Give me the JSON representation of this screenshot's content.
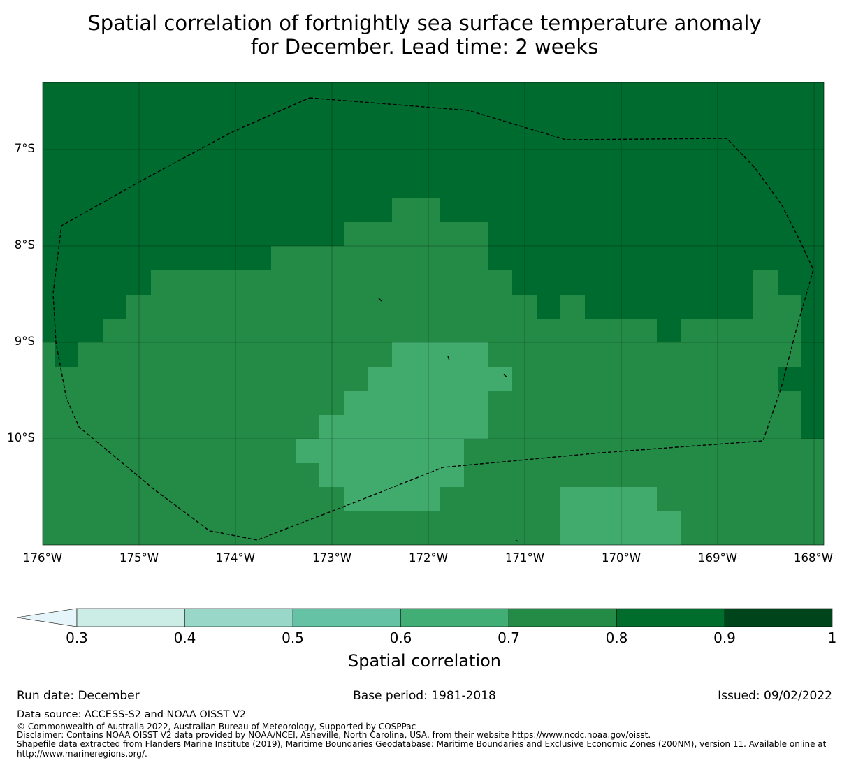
{
  "title": {
    "line1": "Spatial correlation of fortnightly sea surface temperature anomaly",
    "line2": "for December. Lead time: 2 weeks"
  },
  "map": {
    "lat_labels": [
      "7°S",
      "8°S",
      "9°S",
      "10°S"
    ],
    "lon_labels": [
      "176°W",
      "175°W",
      "174°W",
      "173°W",
      "172°W",
      "171°W",
      "170°W",
      "169°W",
      "168°W"
    ],
    "background_color": "#006b2f",
    "region_colors": {
      "band_0.6_0.7": "#41ab6e",
      "band_0.7_0.8": "#238b45",
      "band_0.8_0.9": "#006b2f"
    }
  },
  "colorbar": {
    "ticks": [
      "0.3",
      "0.4",
      "0.5",
      "0.6",
      "0.7",
      "0.8",
      "0.9",
      "1"
    ],
    "colors": [
      "#e5f5f9",
      "#ccece6",
      "#99d8c9",
      "#66c2a4",
      "#41ae76",
      "#238b45",
      "#006d2c",
      "#00441b"
    ],
    "label": "Spatial correlation"
  },
  "footer": {
    "run_date": "Run date: December",
    "base_period": "Base period: 1981-2018",
    "issued": "Issued: 09/02/2022",
    "data_source": "Data source: ACCESS-S2 and NOAA OISST V2",
    "copyright": "© Commonwealth of Australia 2022, Australian Bureau of Meteorology, Supported by COSPPac",
    "disclaimer": "Disclaimer: Contains NOAA OISST V2 data provided by NOAA/NCEI, Asheville, North Carolina, USA, from their website https://www.ncdc.noaa.gov/oisst.",
    "shapefile": "Shapefile data extracted from Flanders Marine Institute (2019), Maritime Boundaries Geodatabase: Maritime Boundaries and Exclusive Economic Zones (200NM), version 11. Available online at http://www.marineregions.org/."
  }
}
